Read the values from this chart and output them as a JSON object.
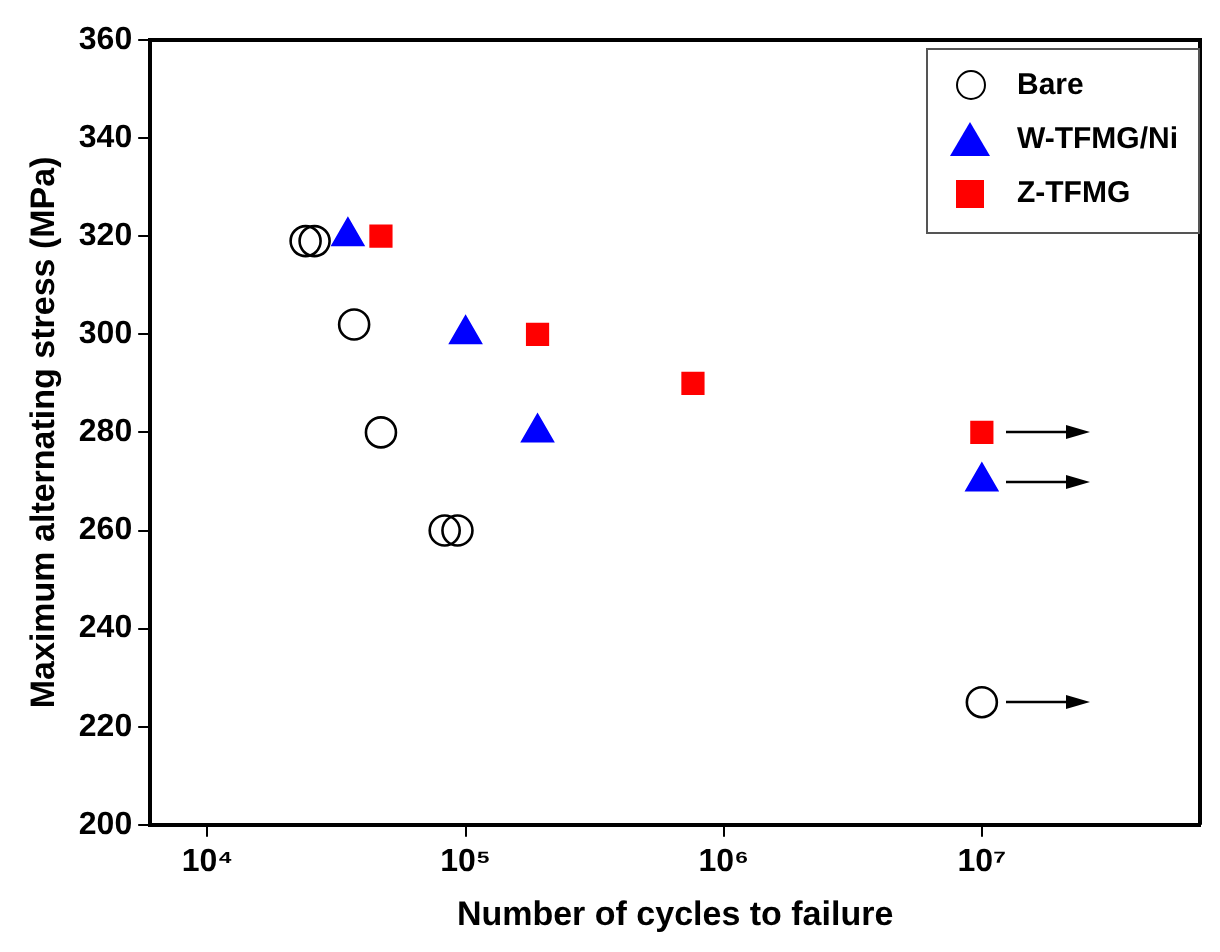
{
  "chart_data": {
    "type": "scatter",
    "xlabel": "Number of cycles to failure",
    "ylabel": "Maximum alternating stress (MPa)",
    "log": "x",
    "grid": false,
    "legend": "top right",
    "xlim": [
      6000,
      70000000
    ],
    "xticks": [
      {
        "value": 10000,
        "label": "10⁴"
      },
      {
        "value": 100000,
        "label": "10⁵"
      },
      {
        "value": 1000000,
        "label": "10⁶"
      },
      {
        "value": 10000000,
        "label": "10⁷"
      }
    ],
    "ylim": [
      200,
      360
    ],
    "yticks": [
      200,
      220,
      240,
      260,
      280,
      300,
      320,
      340,
      360
    ],
    "series": [
      {
        "name": "Bare",
        "color": "#000000",
        "marker": "circle",
        "x": [
          24000,
          26000,
          37000,
          47000,
          83000,
          93000,
          10000000
        ],
        "values": [
          319,
          319,
          302,
          280,
          260,
          260,
          225
        ]
      },
      {
        "name": "W-TFMG/Ni",
        "color": "#0000ff",
        "marker": "triangle",
        "x": [
          35000,
          100000,
          190000,
          10000000
        ],
        "values": [
          320,
          300,
          280,
          270
        ]
      },
      {
        "name": "Z-TFMG",
        "color": "#ff0000",
        "marker": "square",
        "x": [
          47000,
          190000,
          760000,
          10000000
        ],
        "values": [
          320,
          300,
          290,
          280
        ]
      }
    ]
  }
}
